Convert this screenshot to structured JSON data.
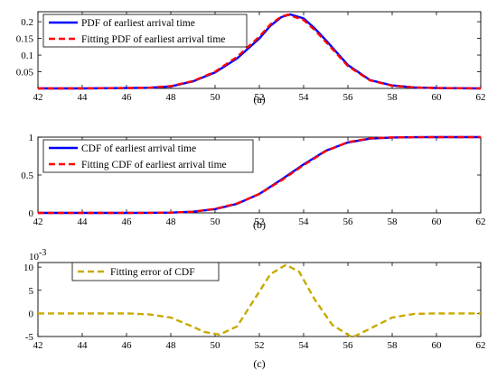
{
  "chart_data": [
    {
      "type": "line",
      "panel_label": "(a)",
      "xlim": [
        42,
        62
      ],
      "ylim": [
        0,
        0.23
      ],
      "x_ticks": [
        "42",
        "44",
        "46",
        "48",
        "50",
        "52",
        "54",
        "56",
        "58",
        "60",
        "62"
      ],
      "y_ticks": [
        "0.05",
        "0.1",
        "0.15",
        "0.2"
      ],
      "grid": false,
      "legend_position": "top-left",
      "series": [
        {
          "name": "PDF of earliest arrival time",
          "color": "#0000ff",
          "style": "solid",
          "x": [
            42,
            44,
            46,
            47,
            48,
            49,
            50,
            51,
            52,
            52.5,
            53,
            53.4,
            54,
            54.5,
            55,
            56,
            57,
            58,
            59,
            60,
            62
          ],
          "y": [
            0,
            0,
            0.001,
            0.002,
            0.006,
            0.021,
            0.048,
            0.09,
            0.15,
            0.188,
            0.214,
            0.222,
            0.21,
            0.18,
            0.145,
            0.07,
            0.025,
            0.009,
            0.003,
            0.001,
            0
          ]
        },
        {
          "name": "Fitting PDF of earliest arrival time",
          "color": "#ff0000",
          "style": "dashed",
          "x": [
            42,
            44,
            46,
            47,
            48,
            49,
            50,
            51,
            52,
            52.5,
            53,
            53.3,
            54,
            54.5,
            55,
            56,
            57,
            58,
            59,
            60,
            62
          ],
          "y": [
            0,
            0,
            0.001,
            0.002,
            0.007,
            0.022,
            0.05,
            0.095,
            0.155,
            0.192,
            0.216,
            0.221,
            0.205,
            0.175,
            0.14,
            0.067,
            0.024,
            0.008,
            0.003,
            0.001,
            0
          ]
        }
      ]
    },
    {
      "type": "line",
      "panel_label": "(b)",
      "xlim": [
        42,
        62
      ],
      "ylim": [
        0,
        1
      ],
      "x_ticks": [
        "42",
        "44",
        "46",
        "48",
        "50",
        "52",
        "54",
        "56",
        "58",
        "60",
        "62"
      ],
      "y_ticks": [
        "0",
        "0.5",
        "1"
      ],
      "grid": false,
      "legend_position": "top-left",
      "series": [
        {
          "name": "CDF of earliest arrival time",
          "color": "#0000ff",
          "style": "solid",
          "x": [
            42,
            44,
            46,
            47,
            48,
            49,
            50,
            51,
            52,
            53,
            54,
            55,
            56,
            57,
            58,
            59,
            60,
            62
          ],
          "y": [
            0,
            0,
            0,
            0.001,
            0.004,
            0.015,
            0.05,
            0.12,
            0.25,
            0.44,
            0.64,
            0.82,
            0.93,
            0.98,
            0.995,
            0.999,
            1,
            1
          ]
        },
        {
          "name": "Fitting CDF of earliest arrival time",
          "color": "#ff0000",
          "style": "dashed",
          "x": [
            42,
            44,
            46,
            47,
            48,
            49,
            50,
            51,
            52,
            53,
            54,
            55,
            56,
            57,
            58,
            59,
            60,
            62
          ],
          "y": [
            0,
            0,
            0,
            0.001,
            0.004,
            0.016,
            0.054,
            0.125,
            0.25,
            0.43,
            0.63,
            0.815,
            0.935,
            0.983,
            0.996,
            0.999,
            1,
            1
          ]
        }
      ]
    },
    {
      "type": "line",
      "panel_label": "(c)",
      "xlim": [
        42,
        62
      ],
      "ylim": [
        -5,
        11
      ],
      "x_ticks": [
        "42",
        "44",
        "46",
        "48",
        "50",
        "52",
        "54",
        "56",
        "58",
        "60",
        "62"
      ],
      "y_ticks": [
        "-5",
        "0",
        "5",
        "10"
      ],
      "y_exponent_base": "10",
      "y_exponent_power": "-3",
      "grid": false,
      "legend_position": "top-left",
      "series": [
        {
          "name": "Fitting error of CDF",
          "color": "#c8aa00",
          "style": "dashed",
          "x": [
            42,
            44,
            46,
            47,
            48,
            49,
            49.5,
            50.2,
            51,
            51.7,
            52.5,
            53.2,
            53.8,
            54.5,
            55.3,
            56.2,
            57,
            58,
            59,
            60,
            62
          ],
          "y": [
            0,
            0,
            0,
            -0.2,
            -0.9,
            -2.9,
            -4.0,
            -4.6,
            -2.8,
            2.5,
            8.5,
            10.5,
            9.0,
            3.0,
            -2.5,
            -5.2,
            -3.3,
            -0.9,
            -0.1,
            0,
            0
          ]
        }
      ]
    }
  ]
}
